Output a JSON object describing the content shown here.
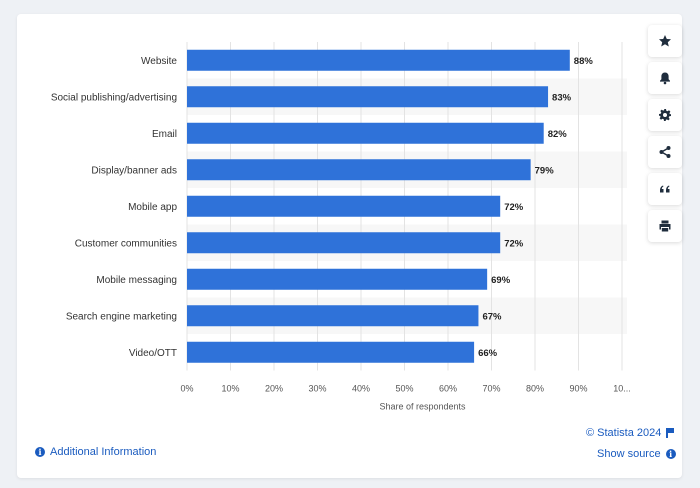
{
  "chart_data": {
    "type": "bar",
    "orientation": "horizontal",
    "categories": [
      "Website",
      "Social publishing/advertising",
      "Email",
      "Display/banner ads",
      "Mobile app",
      "Customer communities",
      "Mobile messaging",
      "Search engine marketing",
      "Video/OTT"
    ],
    "values": [
      88,
      83,
      82,
      79,
      72,
      72,
      69,
      67,
      66
    ],
    "value_labels": [
      "88%",
      "83%",
      "82%",
      "79%",
      "72%",
      "72%",
      "69%",
      "67%",
      "66%"
    ],
    "xlabel": "Share of respondents",
    "xlim": [
      0,
      100
    ],
    "xticks": [
      "0%",
      "10%",
      "20%",
      "30%",
      "40%",
      "50%",
      "60%",
      "70%",
      "80%",
      "90%",
      "10..."
    ],
    "bar_color": "#2f72d9",
    "grid": true
  },
  "toolbar": {
    "icons": [
      "star-icon",
      "bell-icon",
      "gear-icon",
      "share-icon",
      "quote-icon",
      "print-icon"
    ]
  },
  "footer": {
    "additional_info": "Additional Information",
    "copyright": "© Statista 2024",
    "show_source": "Show source"
  }
}
